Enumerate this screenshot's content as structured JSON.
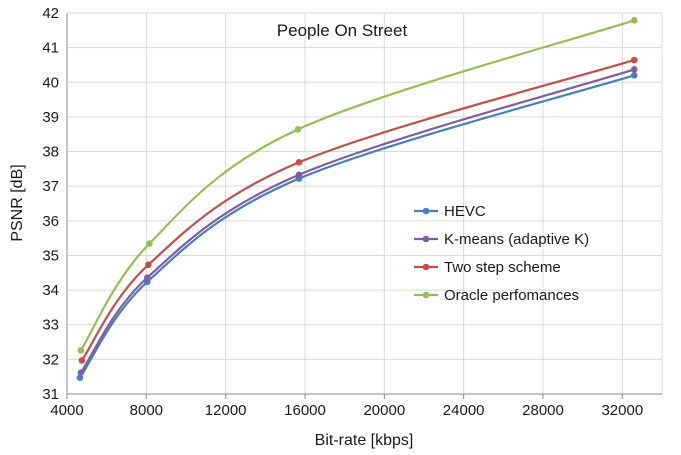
{
  "chart_data": {
    "type": "line",
    "title": "People On Street",
    "xlabel": "Bit-rate [kbps]",
    "ylabel": "PSNR [dB]",
    "xlim": [
      4000,
      34000
    ],
    "ylim": [
      31,
      42
    ],
    "xticks": [
      4000,
      8000,
      12000,
      16000,
      20000,
      24000,
      28000,
      32000
    ],
    "yticks": [
      31,
      32,
      33,
      34,
      35,
      36,
      37,
      38,
      39,
      40,
      41,
      42
    ],
    "grid": true,
    "legend_position": "center-right",
    "series": [
      {
        "name": "HEVC",
        "color": "#4a7ebb",
        "x": [
          4650,
          8050,
          15700,
          32600
        ],
        "y": [
          31.47,
          34.24,
          37.22,
          40.2
        ]
      },
      {
        "name": "K-means (adaptive K)",
        "color": "#7e5fa2",
        "x": [
          4700,
          8050,
          15700,
          32600
        ],
        "y": [
          31.62,
          34.36,
          37.33,
          40.37
        ]
      },
      {
        "name": "Two step scheme",
        "color": "#c0504d",
        "x": [
          4750,
          8100,
          15700,
          32600
        ],
        "y": [
          31.97,
          34.73,
          37.69,
          40.64
        ]
      },
      {
        "name": "Oracle perfomances",
        "color": "#9bbb59",
        "x": [
          4700,
          8150,
          15650,
          32600
        ],
        "y": [
          32.26,
          35.34,
          38.64,
          41.79
        ]
      }
    ]
  }
}
